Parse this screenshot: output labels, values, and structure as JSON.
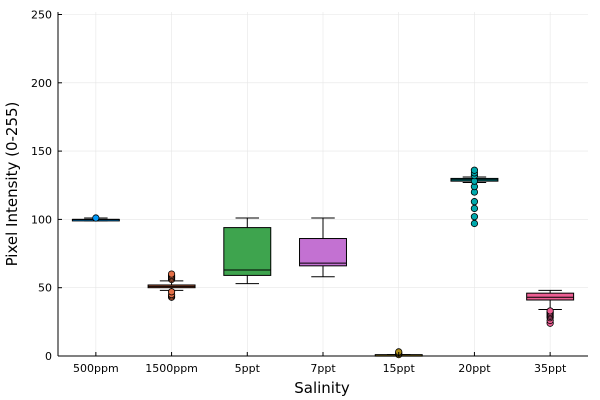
{
  "chart_data": {
    "type": "box",
    "title": "",
    "xlabel": "Salinity",
    "ylabel": "Pixel Intensity (0-255)",
    "ylim": [
      0,
      255
    ],
    "yticks": [
      0,
      50,
      100,
      150,
      200,
      250
    ],
    "grid": true,
    "legend": "none",
    "categories": [
      "500ppm",
      "1500ppm",
      "5ppt",
      "7ppt",
      "15ppt",
      "20ppt",
      "35ppt"
    ],
    "boxes": [
      {
        "category": "500ppm",
        "color": "#009AFA",
        "whisker_low": 99,
        "q1": 99,
        "median": 100,
        "q3": 100,
        "whisker_high": 101,
        "outliers": [
          101
        ]
      },
      {
        "category": "1500ppm",
        "color": "#E36F47",
        "whisker_low": 48,
        "q1": 50,
        "median": 51,
        "q3": 52,
        "whisker_high": 55,
        "outliers": [
          43,
          44,
          45,
          47,
          56,
          57,
          58,
          59,
          60
        ]
      },
      {
        "category": "5ppt",
        "color": "#3EA44E",
        "whisker_low": 53,
        "q1": 59,
        "median": 63,
        "q3": 94,
        "whisker_high": 101,
        "outliers": []
      },
      {
        "category": "7ppt",
        "color": "#C371D2",
        "whisker_low": 58,
        "q1": 66,
        "median": 68,
        "q3": 86,
        "whisker_high": 101,
        "outliers": []
      },
      {
        "category": "15ppt",
        "color": "#AC8D18",
        "whisker_low": 0,
        "q1": 0,
        "median": 0,
        "q3": 1,
        "whisker_high": 1,
        "outliers": [
          1,
          2,
          3
        ]
      },
      {
        "category": "20ppt",
        "color": "#00A9AD",
        "whisker_low": 127,
        "q1": 128,
        "median": 129,
        "q3": 130,
        "whisker_high": 131,
        "outliers": [
          97,
          102,
          108,
          113,
          120,
          124,
          128,
          132,
          134,
          136
        ]
      },
      {
        "category": "35ppt",
        "color": "#ED5E93",
        "whisker_low": 34,
        "q1": 41,
        "median": 43,
        "q3": 46,
        "whisker_high": 48,
        "outliers": [
          24,
          26,
          28,
          29,
          30,
          31,
          32,
          33
        ]
      }
    ]
  }
}
